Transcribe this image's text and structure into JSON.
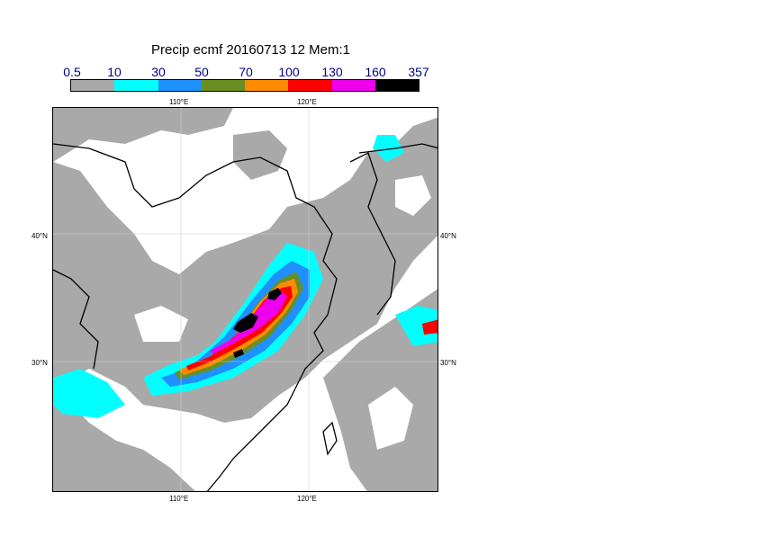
{
  "title": "Precip ecmf 20160713 12 Mem:1",
  "legend": {
    "labels": [
      "0.5",
      "10",
      "30",
      "50",
      "70",
      "100",
      "130",
      "160",
      "357"
    ],
    "colors": [
      "#a9a9a9",
      "#00ffff",
      "#1e90ff",
      "#6b8e23",
      "#ff8c00",
      "#ff0000",
      "#ee00ee",
      "#000000"
    ]
  },
  "axes": {
    "top": [
      "110°E",
      "120°E"
    ],
    "bottom": [
      "110°E",
      "120°E"
    ],
    "left": [
      "40°N",
      "30°N"
    ],
    "right": [
      "40°N",
      "30°N"
    ]
  }
}
